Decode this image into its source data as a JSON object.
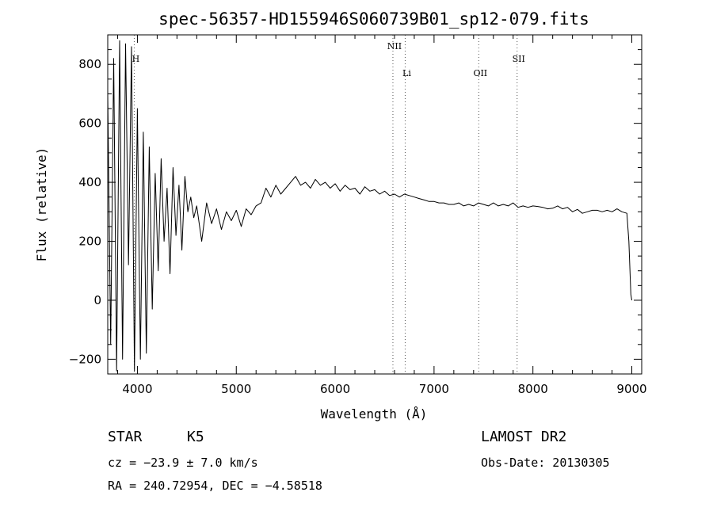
{
  "chart_data": {
    "type": "line",
    "title": "spec-56357-HD155946S060739B01_sp12-079.fits",
    "xlabel": "Wavelength (Å)",
    "ylabel": "Flux (relative)",
    "xlim": [
      3700,
      9100
    ],
    "ylim": [
      -250,
      900
    ],
    "xticks": [
      4000,
      5000,
      6000,
      7000,
      8000,
      9000
    ],
    "yticks": [
      -200,
      0,
      200,
      400,
      600,
      800
    ],
    "grid": false,
    "spectral_lines": [
      {
        "label": "H",
        "wavelength": 3968
      },
      {
        "label": "NII",
        "wavelength": 6584
      },
      {
        "label": "Li",
        "wavelength": 6708
      },
      {
        "label": "OII",
        "wavelength": 7452
      },
      {
        "label": "SII",
        "wavelength": 7840
      }
    ],
    "series": [
      {
        "x": [
          3700,
          3730,
          3760,
          3790,
          3820,
          3850,
          3880,
          3910,
          3940,
          3970,
          4000,
          4030,
          4060,
          4090,
          4120,
          4150,
          4180,
          4210,
          4240,
          4270,
          4300,
          4330,
          4360,
          4390,
          4420,
          4450,
          4480,
          4510,
          4540,
          4570,
          4600,
          4650,
          4700,
          4750,
          4800,
          4850,
          4900,
          4950,
          5000,
          5050,
          5100,
          5150,
          5200,
          5250,
          5300,
          5350,
          5400,
          5450,
          5500,
          5550,
          5600,
          5650,
          5700,
          5750,
          5800,
          5850,
          5900,
          5950,
          6000,
          6050,
          6100,
          6150,
          6200,
          6250,
          6300,
          6350,
          6400,
          6450,
          6500,
          6550,
          6600,
          6650,
          6700,
          6750,
          6800,
          6850,
          6900,
          6950,
          7000,
          7050,
          7100,
          7150,
          7200,
          7250,
          7300,
          7350,
          7400,
          7450,
          7500,
          7550,
          7600,
          7650,
          7700,
          7750,
          7800,
          7850,
          7900,
          7950,
          8000,
          8050,
          8100,
          8150,
          8200,
          8250,
          8300,
          8350,
          8400,
          8450,
          8500,
          8550,
          8600,
          8650,
          8700,
          8750,
          8800,
          8850,
          8900,
          8950,
          8970,
          8990,
          9000
        ],
        "y": [
          700,
          -150,
          820,
          -240,
          880,
          -200,
          870,
          120,
          860,
          -240,
          650,
          -200,
          570,
          -180,
          520,
          -30,
          430,
          100,
          480,
          200,
          380,
          90,
          450,
          220,
          390,
          170,
          420,
          300,
          350,
          280,
          320,
          200,
          330,
          260,
          310,
          240,
          300,
          270,
          305,
          250,
          310,
          290,
          320,
          330,
          380,
          350,
          390,
          360,
          380,
          400,
          420,
          390,
          400,
          380,
          410,
          390,
          400,
          380,
          395,
          370,
          390,
          375,
          380,
          360,
          385,
          370,
          375,
          360,
          370,
          355,
          360,
          350,
          360,
          355,
          350,
          345,
          340,
          335,
          335,
          330,
          330,
          325,
          325,
          330,
          320,
          325,
          320,
          330,
          325,
          320,
          330,
          320,
          325,
          320,
          330,
          315,
          320,
          315,
          320,
          318,
          315,
          310,
          312,
          320,
          310,
          315,
          300,
          308,
          295,
          300,
          305,
          305,
          300,
          305,
          300,
          310,
          300,
          295,
          200,
          20,
          0
        ]
      }
    ]
  },
  "info": {
    "object_class": "STAR",
    "subclass": "K5",
    "survey": "LAMOST DR2",
    "cz": "cz = −23.9 ± 7.0 km/s",
    "obs_date": "Obs-Date: 20130305",
    "coords": "RA = 240.72954, DEC =  −4.58518"
  }
}
